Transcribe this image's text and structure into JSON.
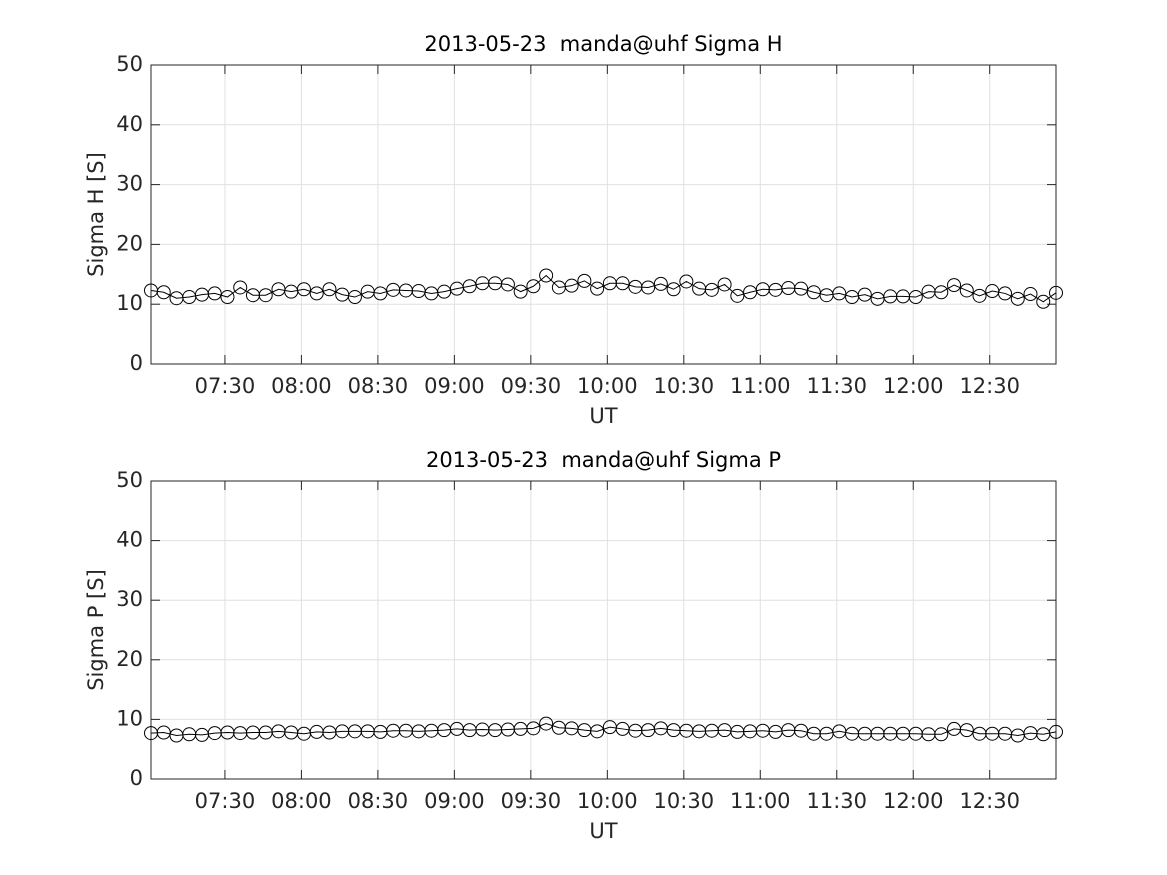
{
  "chart_data": [
    {
      "type": "line",
      "title": "2013-05-23  manda@uhf Sigma H",
      "x_label": "UT",
      "y_label": "Sigma H [S]",
      "x": [
        "07:01",
        "07:06",
        "07:11",
        "07:16",
        "07:21",
        "07:26",
        "07:31",
        "07:36",
        "07:41",
        "07:46",
        "07:51",
        "07:56",
        "08:01",
        "08:06",
        "08:11",
        "08:16",
        "08:21",
        "08:26",
        "08:31",
        "08:36",
        "08:41",
        "08:46",
        "08:51",
        "08:56",
        "09:01",
        "09:06",
        "09:11",
        "09:16",
        "09:21",
        "09:26",
        "09:31",
        "09:36",
        "09:41",
        "09:46",
        "09:51",
        "09:56",
        "10:01",
        "10:06",
        "10:11",
        "10:16",
        "10:21",
        "10:26",
        "10:31",
        "10:36",
        "10:41",
        "10:46",
        "10:51",
        "10:56",
        "11:01",
        "11:06",
        "11:11",
        "11:16",
        "11:21",
        "11:26",
        "11:31",
        "11:36",
        "11:41",
        "11:46",
        "11:51",
        "11:56",
        "12:01",
        "12:06",
        "12:11",
        "12:16",
        "12:21",
        "12:26",
        "12:31",
        "12:36",
        "12:41",
        "12:46",
        "12:51",
        "12:56"
      ],
      "values": [
        12.3,
        12.0,
        11.0,
        11.2,
        11.6,
        11.8,
        11.2,
        12.8,
        11.5,
        11.5,
        12.5,
        12.1,
        12.5,
        11.8,
        12.5,
        11.6,
        11.2,
        12.1,
        11.8,
        12.4,
        12.3,
        12.2,
        11.8,
        12.1,
        12.6,
        13.0,
        13.5,
        13.5,
        13.3,
        12.1,
        13.0,
        14.8,
        12.8,
        13.1,
        13.9,
        12.6,
        13.5,
        13.5,
        12.9,
        12.8,
        13.4,
        12.5,
        13.8,
        12.6,
        12.4,
        13.3,
        11.4,
        12.0,
        12.5,
        12.4,
        12.7,
        12.6,
        12.0,
        11.5,
        11.8,
        11.2,
        11.6,
        10.9,
        11.3,
        11.3,
        11.2,
        12.1,
        12.0,
        13.2,
        12.3,
        11.4,
        12.2,
        11.8,
        10.9,
        11.7,
        10.4,
        11.9
      ],
      "color": "#000000",
      "marker": "o",
      "xlim": [
        "07:01",
        "12:56"
      ],
      "xticks": [
        "07:30",
        "08:00",
        "08:30",
        "09:00",
        "09:30",
        "10:00",
        "10:30",
        "11:00",
        "11:30",
        "12:00",
        "12:30"
      ],
      "ylim": [
        0,
        50
      ],
      "yticks": [
        0,
        10,
        20,
        30,
        40,
        50
      ],
      "grid": true
    },
    {
      "type": "line",
      "title": "2013-05-23  manda@uhf Sigma P",
      "x_label": "UT",
      "y_label": "Sigma P [S]",
      "x": [
        "07:01",
        "07:06",
        "07:11",
        "07:16",
        "07:21",
        "07:26",
        "07:31",
        "07:36",
        "07:41",
        "07:46",
        "07:51",
        "07:56",
        "08:01",
        "08:06",
        "08:11",
        "08:16",
        "08:21",
        "08:26",
        "08:31",
        "08:36",
        "08:41",
        "08:46",
        "08:51",
        "08:56",
        "09:01",
        "09:06",
        "09:11",
        "09:16",
        "09:21",
        "09:26",
        "09:31",
        "09:36",
        "09:41",
        "09:46",
        "09:51",
        "09:56",
        "10:01",
        "10:06",
        "10:11",
        "10:16",
        "10:21",
        "10:26",
        "10:31",
        "10:36",
        "10:41",
        "10:46",
        "10:51",
        "10:56",
        "11:01",
        "11:06",
        "11:11",
        "11:16",
        "11:21",
        "11:26",
        "11:31",
        "11:36",
        "11:41",
        "11:46",
        "11:51",
        "11:56",
        "12:01",
        "12:06",
        "12:11",
        "12:16",
        "12:21",
        "12:26",
        "12:31",
        "12:36",
        "12:41",
        "12:46",
        "12:51",
        "12:56"
      ],
      "values": [
        7.7,
        7.8,
        7.3,
        7.5,
        7.4,
        7.7,
        7.8,
        7.7,
        7.8,
        7.8,
        8.0,
        7.8,
        7.6,
        7.9,
        7.8,
        8.0,
        8.0,
        8.0,
        7.9,
        8.1,
        8.1,
        8.0,
        8.1,
        8.2,
        8.4,
        8.2,
        8.3,
        8.2,
        8.3,
        8.4,
        8.5,
        9.3,
        8.6,
        8.5,
        8.2,
        8.0,
        8.7,
        8.4,
        8.1,
        8.2,
        8.5,
        8.2,
        8.1,
        8.0,
        8.1,
        8.2,
        7.9,
        8.0,
        8.1,
        7.9,
        8.2,
        8.1,
        7.6,
        7.6,
        8.0,
        7.6,
        7.6,
        7.6,
        7.6,
        7.6,
        7.6,
        7.5,
        7.5,
        8.4,
        8.2,
        7.6,
        7.6,
        7.6,
        7.3,
        7.7,
        7.5,
        7.9
      ],
      "color": "#000000",
      "marker": "o",
      "xlim": [
        "07:01",
        "12:56"
      ],
      "xticks": [
        "07:30",
        "08:00",
        "08:30",
        "09:00",
        "09:30",
        "10:00",
        "10:30",
        "11:00",
        "11:30",
        "12:00",
        "12:30"
      ],
      "ylim": [
        0,
        50
      ],
      "yticks": [
        0,
        10,
        20,
        30,
        40,
        50
      ],
      "grid": true
    }
  ]
}
